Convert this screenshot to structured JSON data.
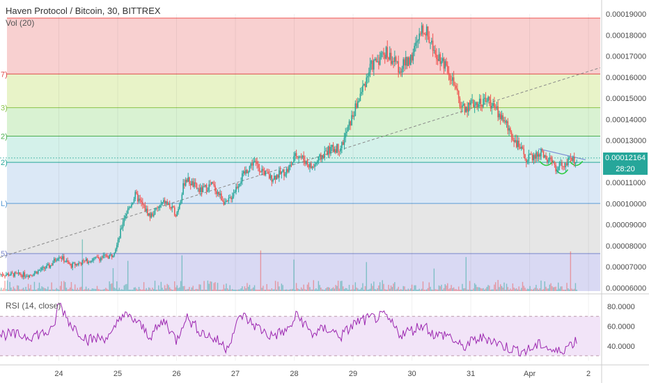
{
  "header": {
    "title": "Haven Protocol / Bitcoin, 30, BITTREX",
    "vol_label": "Vol (20)",
    "rsi_label": "RSI (14, close)"
  },
  "colors": {
    "bull": "#26a69a",
    "bear": "#ef5350",
    "rsi": "#9c27b0",
    "pattern": "#2ecc40",
    "trend": "#7b8bd4"
  },
  "chart_data": [
    {
      "type": "candlestick",
      "title": "Haven Protocol / Bitcoin, 30, BITTREX",
      "price_range": [
        5.85e-05,
        0.00019
      ],
      "x_ticks": [
        "24",
        "25",
        "26",
        "27",
        "28",
        "29",
        "30",
        "31",
        "Apr",
        "2"
      ],
      "x_tick_day_index": [
        1,
        2,
        3,
        4,
        5,
        6,
        7,
        8,
        9,
        10
      ],
      "x_range_days": [
        0,
        10.2
      ],
      "y_ticks": [
        "0.00019000",
        "0.00018000",
        "0.00017000",
        "0.00016000",
        "0.00015000",
        "0.00014000",
        "0.00013000",
        "0.00012000",
        "0.00011000",
        "0.00010000",
        "0.00009000",
        "0.00008000",
        "0.00007000",
        "0.00006000"
      ],
      "y_tick_values": [
        0.00019,
        0.00018,
        0.00017,
        0.00016,
        0.00015,
        0.00014,
        0.00013,
        0.00012,
        0.00011,
        0.0001,
        9e-05,
        8e-05,
        7e-05,
        6e-05
      ],
      "fib_levels": [
        {
          "label": "",
          "value": 0.000188,
          "color": "#ef5350",
          "fill": "#f8d0d0"
        },
        {
          "label": "7)",
          "value": 0.0001615,
          "color": "#e04a4a",
          "fill": "#e8f3c8"
        },
        {
          "label": "3)",
          "value": 0.0001455,
          "color": "#8bc34a",
          "fill": "#d9f2d2"
        },
        {
          "label": "2)",
          "value": 0.000132,
          "color": "#4caf50",
          "fill": "#d4f1ea"
        },
        {
          "label": "2)",
          "value": 0.0001196,
          "color": "#26a69a",
          "fill": "#dbe8f6"
        },
        {
          "label": "L)",
          "value": 0.0001001,
          "color": "#5b9bd5",
          "fill": "#e6e6e6"
        },
        {
          "label": "5)",
          "value": 7.63e-05,
          "color": "#7986cb",
          "fill": "#d9d9f3"
        }
      ],
      "price_path": [
        [
          0.0,
          6.65e-05
        ],
        [
          0.5,
          6.62e-05
        ],
        [
          0.85,
          7.05e-05
        ],
        [
          1.0,
          7.55e-05
        ],
        [
          1.2,
          7.05e-05
        ],
        [
          1.5,
          7.3e-05
        ],
        [
          1.9,
          7.55e-05
        ],
        [
          2.0,
          8.1e-05
        ],
        [
          2.1,
          9.3e-05
        ],
        [
          2.3,
          0.000104
        ],
        [
          2.55,
          9.4e-05
        ],
        [
          2.8,
          0.000101
        ],
        [
          3.0,
          9.5e-05
        ],
        [
          3.15,
          0.000112
        ],
        [
          3.4,
          0.000106
        ],
        [
          3.6,
          0.000109
        ],
        [
          3.85,
          9.95e-05
        ],
        [
          4.1,
          0.000112
        ],
        [
          4.3,
          0.00012
        ],
        [
          4.6,
          0.000112
        ],
        [
          4.9,
          0.000116
        ],
        [
          5.05,
          0.000124
        ],
        [
          5.3,
          0.000117
        ],
        [
          5.55,
          0.000125
        ],
        [
          5.8,
          0.000127
        ],
        [
          6.05,
          0.000146
        ],
        [
          6.3,
          0.000165
        ],
        [
          6.55,
          0.000172
        ],
        [
          6.8,
          0.000164
        ],
        [
          7.0,
          0.00017
        ],
        [
          7.2,
          0.000184
        ],
        [
          7.4,
          0.000172
        ],
        [
          7.6,
          0.000165
        ],
        [
          7.85,
          0.000145
        ],
        [
          8.1,
          0.000148
        ],
        [
          8.3,
          0.000149
        ],
        [
          8.55,
          0.00014
        ],
        [
          8.75,
          0.00013
        ],
        [
          8.95,
          0.000121
        ],
        [
          9.2,
          0.000124
        ],
        [
          9.45,
          0.000117
        ],
        [
          9.6,
          0.000119
        ],
        [
          9.8,
          0.0001216
        ]
      ],
      "current_price": "0.00012164",
      "countdown": "28:20",
      "trendline": [
        [
          0.0,
          7.45e-05
        ],
        [
          10.2,
          0.0001645
        ]
      ],
      "descending_line": [
        [
          9.15,
          0.000126
        ],
        [
          9.95,
          0.0001208
        ]
      ],
      "volume_baseline_price": 5.85e-05,
      "grid": true
    },
    {
      "type": "line",
      "title": "RSI (14, close)",
      "y_range": [
        25,
        90
      ],
      "y_ticks": [
        "80.0000",
        "60.0000",
        "40.0000"
      ],
      "y_tick_values": [
        80,
        60,
        40
      ],
      "band": [
        30,
        70
      ],
      "rsi_path": [
        [
          0.0,
          52
        ],
        [
          0.5,
          50
        ],
        [
          0.9,
          55
        ],
        [
          1.0,
          84
        ],
        [
          1.2,
          62
        ],
        [
          1.5,
          46
        ],
        [
          1.9,
          50
        ],
        [
          2.05,
          72
        ],
        [
          2.3,
          66
        ],
        [
          2.55,
          50
        ],
        [
          2.8,
          66
        ],
        [
          3.0,
          45
        ],
        [
          3.15,
          70
        ],
        [
          3.4,
          55
        ],
        [
          3.7,
          45
        ],
        [
          3.85,
          38
        ],
        [
          4.1,
          72
        ],
        [
          4.3,
          62
        ],
        [
          4.6,
          50
        ],
        [
          4.9,
          56
        ],
        [
          5.05,
          72
        ],
        [
          5.3,
          52
        ],
        [
          5.55,
          58
        ],
        [
          5.8,
          50
        ],
        [
          6.05,
          64
        ],
        [
          6.3,
          68
        ],
        [
          6.55,
          70
        ],
        [
          6.8,
          52
        ],
        [
          7.0,
          56
        ],
        [
          7.2,
          62
        ],
        [
          7.4,
          50
        ],
        [
          7.6,
          52
        ],
        [
          7.85,
          38
        ],
        [
          8.1,
          47
        ],
        [
          8.3,
          48
        ],
        [
          8.55,
          40
        ],
        [
          8.75,
          36
        ],
        [
          8.95,
          35
        ],
        [
          9.2,
          42
        ],
        [
          9.45,
          33
        ],
        [
          9.6,
          38
        ],
        [
          9.8,
          46
        ]
      ]
    }
  ]
}
